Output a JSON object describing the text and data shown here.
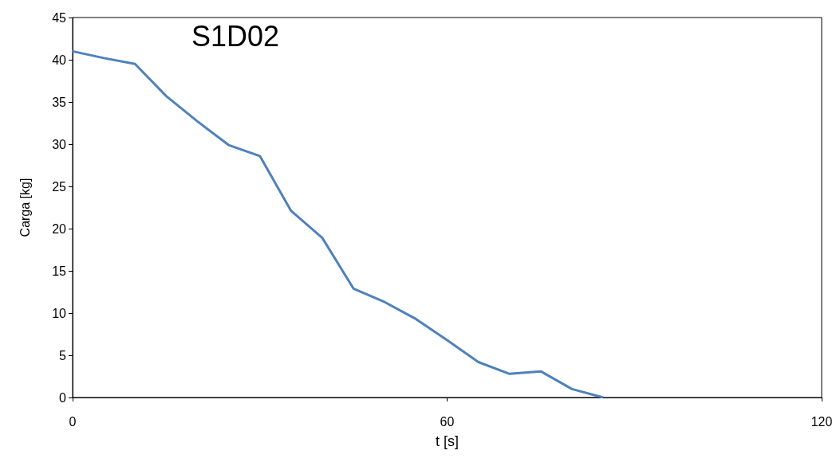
{
  "chart_data": {
    "type": "line",
    "title": "S1D02",
    "xlabel": "t [s]",
    "ylabel": "Carga [kg]",
    "x": [
      0,
      5,
      10,
      15,
      20,
      25,
      30,
      35,
      40,
      45,
      50,
      55,
      60,
      65,
      70,
      75,
      80,
      85
    ],
    "series": [
      {
        "color": "#4f81bd",
        "values": [
          41.0,
          40.2,
          39.5,
          35.7,
          32.7,
          29.9,
          28.6,
          22.1,
          18.9,
          12.9,
          11.3,
          9.3,
          6.8,
          4.2,
          2.8,
          3.1,
          1.0,
          0
        ]
      }
    ],
    "xlim": [
      0,
      120
    ],
    "xticks": [
      0,
      60,
      120
    ],
    "ylim": [
      0,
      45
    ],
    "yticks": [
      0,
      5,
      10,
      15,
      20,
      25,
      30,
      35,
      40,
      45
    ],
    "grid": false,
    "marker": "none",
    "line_style": "solid"
  }
}
